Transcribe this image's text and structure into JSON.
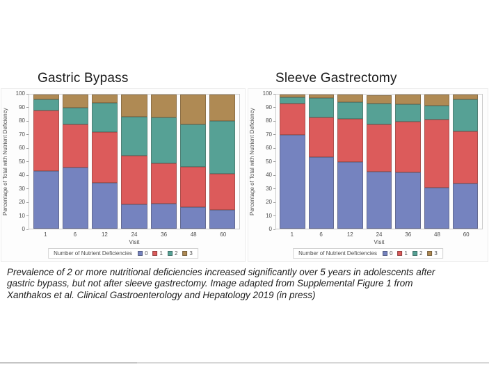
{
  "caption": "Prevalence of 2 or more nutritional deficiencies increased significantly over 5 years in adolescents after gastric bypass, but not after sleeve gastrectomy. Image adapted from Supplemental Figure 1 from Xanthakos et al. Clinical Gastroenterology and Hepatology 2019 (in press)",
  "colors": {
    "deficiency_0_blue": "#7583BF",
    "deficiency_1_red": "#DC5B5B",
    "deficiency_2_teal": "#56A195",
    "deficiency_3_brown": "#AF8A54"
  },
  "chart_data": [
    {
      "type": "bar",
      "stacked": true,
      "title": "Gastric Bypass",
      "xlabel": "Visit",
      "ylabel": "Percentage of Total with Nutrient Deficiency",
      "ylim": [
        0,
        100
      ],
      "ytick_step": 10,
      "grid": false,
      "legend_position": "bottom",
      "legend_title": "Number of Nutrient Deficiencies",
      "categories": [
        "1",
        "6",
        "12",
        "24",
        "36",
        "48",
        "60"
      ],
      "series": [
        {
          "name": "0",
          "color": "#7583BF",
          "values": [
            43,
            45.5,
            34,
            18,
            18.5,
            16,
            14
          ]
        },
        {
          "name": "1",
          "color": "#DC5B5B",
          "values": [
            45,
            32,
            38,
            36.5,
            30,
            30,
            27
          ]
        },
        {
          "name": "2",
          "color": "#56A195",
          "values": [
            8.5,
            12.5,
            22,
            29,
            34.5,
            31.5,
            39.5
          ]
        },
        {
          "name": "3",
          "color": "#AF8A54",
          "values": [
            3.5,
            10,
            6,
            16.5,
            17,
            22.5,
            19.5
          ]
        }
      ]
    },
    {
      "type": "bar",
      "stacked": true,
      "title": "Sleeve Gastrectomy",
      "xlabel": "Visit",
      "ylabel": "Percentage of Total with Nutrient Deficiency",
      "ylim": [
        0,
        100
      ],
      "ytick_step": 10,
      "grid": false,
      "legend_position": "bottom",
      "legend_title": "Number of Nutrient Deficiencies",
      "categories": [
        "1",
        "6",
        "12",
        "24",
        "36",
        "48",
        "60"
      ],
      "series": [
        {
          "name": "0",
          "color": "#7583BF",
          "values": [
            70,
            53.5,
            50,
            42.5,
            42,
            30.5,
            33.5
          ]
        },
        {
          "name": "1",
          "color": "#DC5B5B",
          "values": [
            23.5,
            29.5,
            32,
            35,
            38,
            51,
            39
          ]
        },
        {
          "name": "2",
          "color": "#56A195",
          "values": [
            4.5,
            14.5,
            12.5,
            16,
            13,
            10,
            24
          ]
        },
        {
          "name": "3",
          "color": "#AF8A54",
          "values": [
            2,
            2.5,
            5.5,
            6,
            7,
            8.5,
            3.5
          ]
        }
      ]
    }
  ]
}
